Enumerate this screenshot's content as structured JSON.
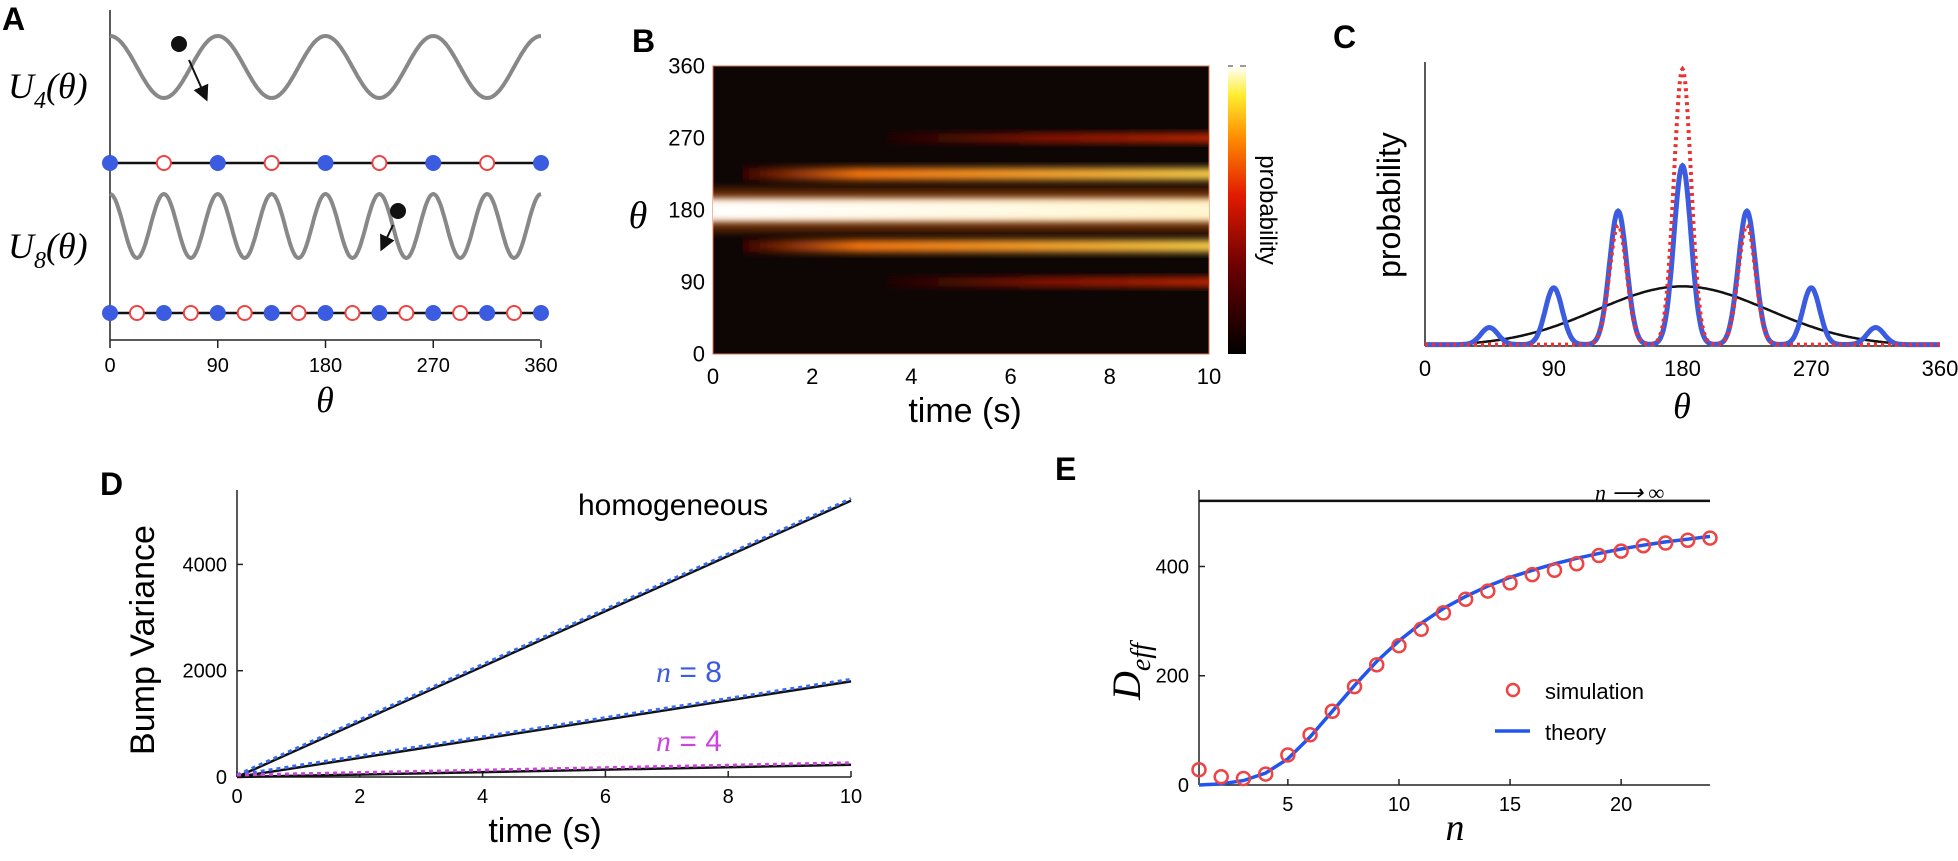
{
  "panel_letters": [
    "A",
    "B",
    "C",
    "D",
    "E"
  ],
  "chart_data": [
    {
      "panel": "A",
      "type": "line",
      "xlabel": "θ",
      "xticks": [
        0,
        90,
        180,
        270,
        360
      ],
      "series": [
        {
          "name": "U4(θ)",
          "label_main": "U",
          "label_sub": "4",
          "label_tail": "(θ)",
          "periods": 4,
          "filled_markers": [
            0,
            90,
            180,
            270,
            360
          ],
          "open_markers": [
            45,
            135,
            225,
            315
          ]
        },
        {
          "name": "U8(θ)",
          "label_main": "U",
          "label_sub": "8",
          "label_tail": "(θ)",
          "periods": 8,
          "filled_markers": [
            0,
            45,
            90,
            135,
            180,
            225,
            270,
            315,
            360
          ],
          "open_markers": [
            22.5,
            67.5,
            112.5,
            157.5,
            202.5,
            247.5,
            292.5,
            337.5
          ]
        }
      ]
    },
    {
      "panel": "B",
      "type": "heatmap",
      "xlabel": "time (s)",
      "ylabel": "θ",
      "xticks": [
        0,
        2,
        4,
        6,
        8,
        10
      ],
      "yticks": [
        0,
        90,
        180,
        270,
        360
      ],
      "xlim": [
        0,
        10
      ],
      "ylim": [
        0,
        360
      ],
      "colorbar_label": "probability",
      "bands": [
        {
          "theta": 180,
          "strength": 1.0
        },
        {
          "theta": 225,
          "strength": 0.75
        },
        {
          "theta": 135,
          "strength": 0.75
        },
        {
          "theta": 270,
          "strength": 0.32
        },
        {
          "theta": 90,
          "strength": 0.32
        }
      ]
    },
    {
      "panel": "C",
      "type": "line",
      "xlabel": "θ",
      "ylabel": "probability",
      "xticks": [
        0,
        90,
        180,
        270,
        360
      ],
      "xlim": [
        0,
        360
      ],
      "series": [
        {
          "style": "solid-blue",
          "peaks": [
            [
              45,
              0.06
            ],
            [
              90,
              0.2
            ],
            [
              135,
              0.47
            ],
            [
              180,
              0.63
            ],
            [
              225,
              0.47
            ],
            [
              270,
              0.2
            ],
            [
              315,
              0.06
            ]
          ],
          "peak_width": 6
        },
        {
          "style": "dotted-red",
          "peaks": [
            [
              135,
              0.42
            ],
            [
              180,
              0.97
            ],
            [
              225,
              0.42
            ]
          ],
          "peak_width": 6
        },
        {
          "style": "solid-black",
          "center": 180,
          "sd": 60,
          "peak": 0.21
        }
      ]
    },
    {
      "panel": "D",
      "type": "line",
      "xlabel": "time (s)",
      "ylabel": "Bump Variance",
      "xticks": [
        0,
        2,
        4,
        6,
        8,
        10
      ],
      "yticks": [
        0,
        2000,
        4000
      ],
      "xlim": [
        0,
        10
      ],
      "ylim": [
        0,
        5400
      ],
      "series": [
        {
          "name": "homogeneous",
          "x": [
            0,
            10
          ],
          "y": [
            0,
            5200
          ]
        },
        {
          "name": "n = 8",
          "x": [
            0,
            10
          ],
          "y": [
            0,
            1800
          ]
        },
        {
          "name": "n = 4",
          "x": [
            0,
            10
          ],
          "y": [
            0,
            230
          ]
        }
      ],
      "annotations": {
        "homogeneous": "homogeneous",
        "n8_var": "n",
        "n8_val": " = 8",
        "n4_var": "n",
        "n4_val": " = 4"
      }
    },
    {
      "panel": "E",
      "type": "scatter",
      "xlabel": "n",
      "ylabel_main": "D",
      "ylabel_sub": "eff",
      "xticks": [
        5,
        10,
        15,
        20
      ],
      "yticks": [
        0,
        200,
        400
      ],
      "xlim": [
        1,
        24
      ],
      "ylim": [
        0,
        540
      ],
      "limit_label": "n ⟶ ∞",
      "limit_value": 520,
      "legend": {
        "simulation": "simulation",
        "theory": "theory"
      },
      "simulation": {
        "x": [
          1,
          2,
          3,
          4,
          5,
          6,
          7,
          8,
          9,
          10,
          11,
          12,
          13,
          14,
          15,
          16,
          17,
          18,
          19,
          20,
          21,
          22,
          23,
          24
        ],
        "y": [
          28,
          15,
          12,
          20,
          55,
          92,
          135,
          180,
          220,
          255,
          285,
          315,
          340,
          355,
          370,
          385,
          393,
          405,
          420,
          428,
          438,
          443,
          448,
          452
        ]
      },
      "theory": {
        "x": [
          1,
          2,
          3,
          4,
          5,
          6,
          7,
          8,
          9,
          10,
          11,
          12,
          13,
          14,
          15,
          16,
          17,
          18,
          19,
          20,
          21,
          22,
          23,
          24
        ],
        "y": [
          0,
          2,
          8,
          22,
          48,
          88,
          135,
          182,
          226,
          264,
          296,
          323,
          345,
          364,
          380,
          393,
          405,
          415,
          424,
          432,
          439,
          445,
          450,
          455
        ]
      }
    }
  ]
}
